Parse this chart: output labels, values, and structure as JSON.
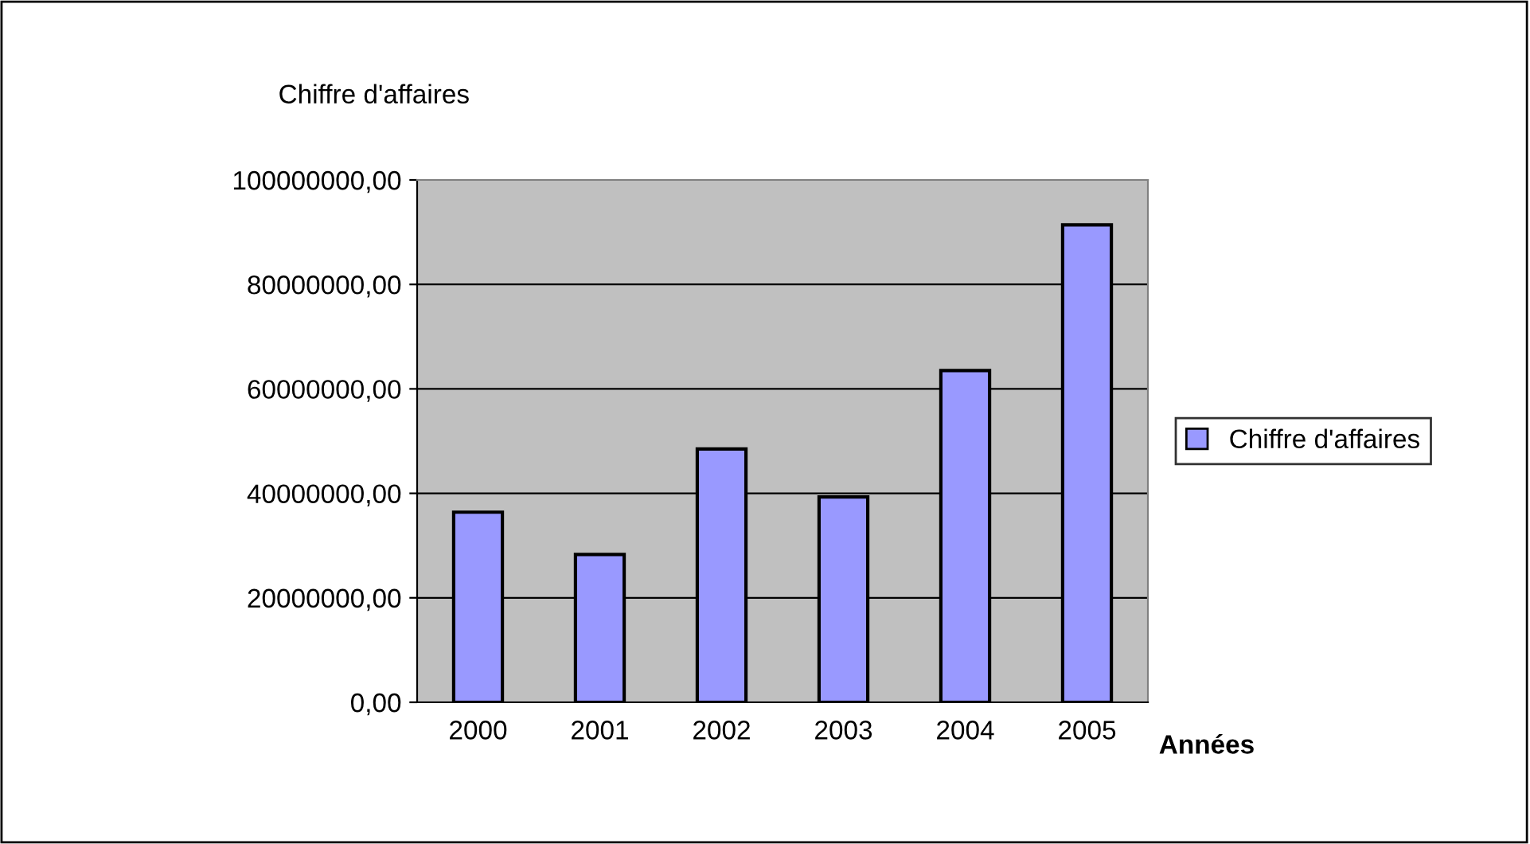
{
  "chart_data": {
    "type": "bar",
    "ylabel": "Chiffre d'affaires",
    "xlabel": "Années",
    "categories": [
      "2000",
      "2001",
      "2002",
      "2003",
      "2004",
      "2005"
    ],
    "series": [
      {
        "name": "Chiffre d'affaires",
        "color": "#9999ff",
        "values": [
          36400000,
          28300000,
          48500000,
          39300000,
          63500000,
          91400000
        ]
      }
    ],
    "ylim": [
      0,
      100000000
    ],
    "yticks": [
      {
        "value": 0,
        "label": "0,00"
      },
      {
        "value": 20000000,
        "label": "20000000,00"
      },
      {
        "value": 40000000,
        "label": "40000000,00"
      },
      {
        "value": 60000000,
        "label": "60000000,00"
      },
      {
        "value": 80000000,
        "label": "80000000,00"
      },
      {
        "value": 100000000,
        "label": "100000000,00"
      }
    ],
    "grid": "y",
    "legend": "right"
  }
}
